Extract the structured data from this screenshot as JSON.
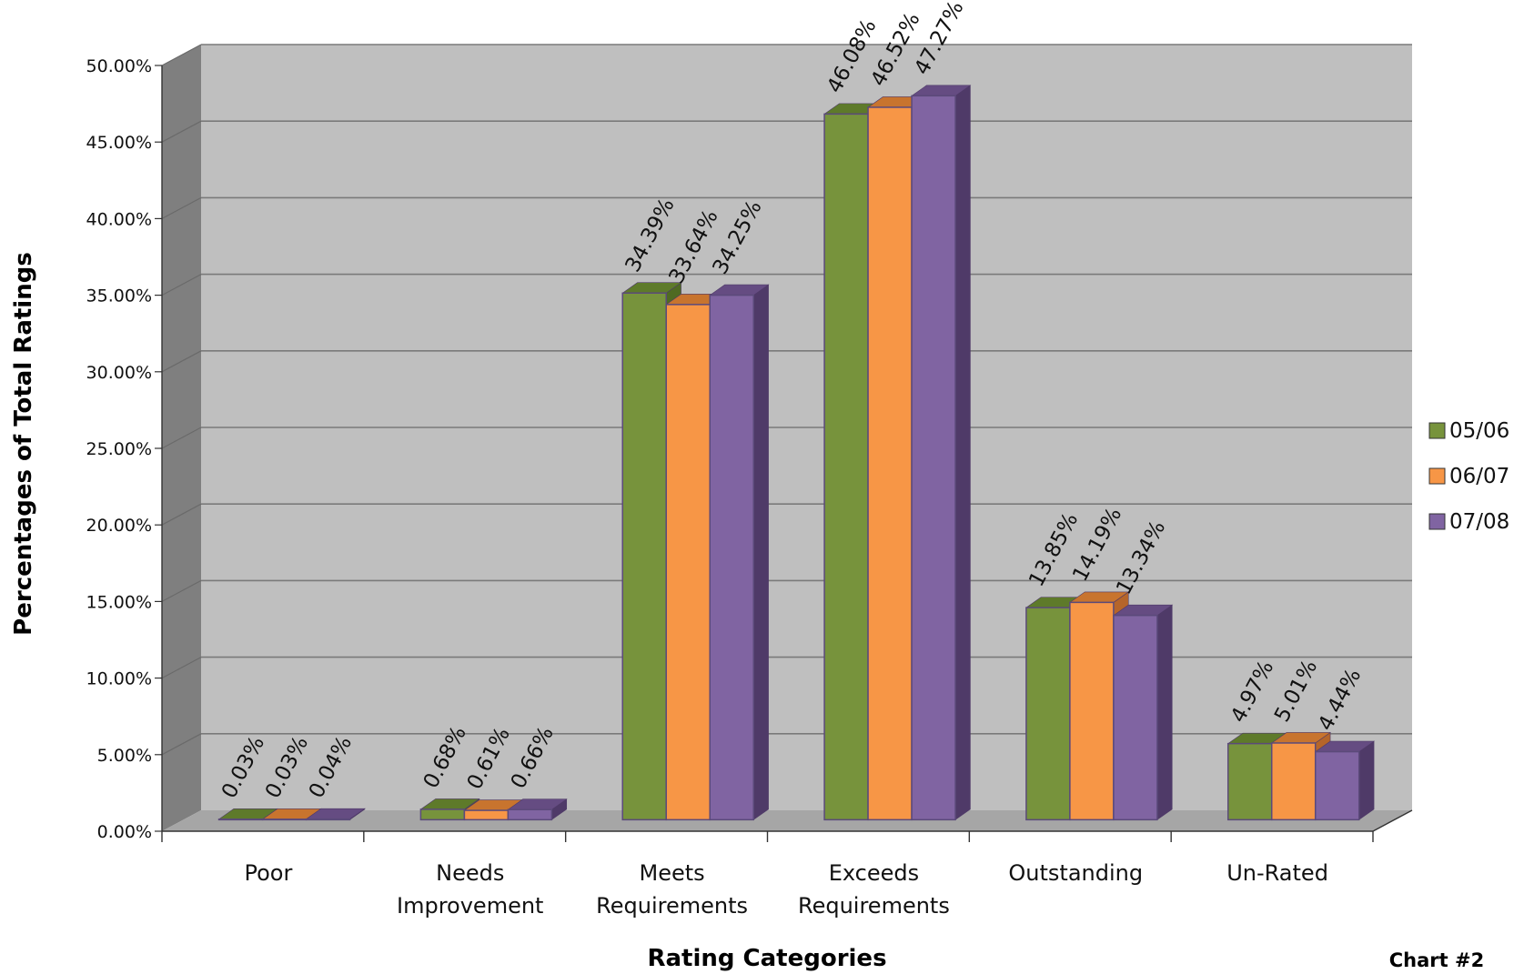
{
  "chart_data": {
    "type": "bar",
    "title": "",
    "xlabel": "Rating Categories",
    "ylabel": "Percentages of Total Ratings",
    "note": "Chart #2",
    "ylim": [
      0,
      50
    ],
    "y_ticks": [
      "0.00%",
      "5.00%",
      "10.00%",
      "15.00%",
      "20.00%",
      "25.00%",
      "30.00%",
      "35.00%",
      "40.00%",
      "45.00%",
      "50.00%"
    ],
    "categories": [
      [
        "Poor"
      ],
      [
        "Needs",
        "Improvement"
      ],
      [
        "Meets",
        "Requirements"
      ],
      [
        "Exceeds",
        "Requirements"
      ],
      [
        "Outstanding"
      ],
      [
        "Un-Rated"
      ]
    ],
    "series": [
      {
        "name": "05/06",
        "color": "#77933C",
        "top": "#5E7A2A",
        "side": "#4F6A22",
        "values": [
          0.03,
          0.68,
          34.39,
          46.08,
          13.85,
          4.97
        ],
        "labels": [
          "0.03%",
          "0.68%",
          "34.39%",
          "46.08%",
          "13.85%",
          "4.97%"
        ]
      },
      {
        "name": "06/07",
        "color": "#F79646",
        "top": "#C8742E",
        "side": "#B5652A",
        "values": [
          0.03,
          0.61,
          33.64,
          46.52,
          14.19,
          5.01
        ],
        "labels": [
          "0.03%",
          "0.61%",
          "33.64%",
          "46.52%",
          "14.19%",
          "5.01%"
        ]
      },
      {
        "name": "07/08",
        "color": "#8064A2",
        "top": "#654C82",
        "side": "#4F3A68",
        "values": [
          0.04,
          0.66,
          34.25,
          47.27,
          13.34,
          4.44
        ],
        "labels": [
          "0.04%",
          "0.66%",
          "34.25%",
          "47.27%",
          "13.34%",
          "4.44%"
        ]
      }
    ],
    "grid": true,
    "legend": "right",
    "three_d": true
  }
}
